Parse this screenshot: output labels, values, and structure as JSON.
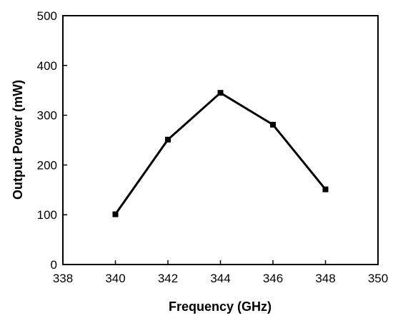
{
  "chart_data": {
    "type": "line",
    "title": "",
    "xlabel": "Frequency (GHz)",
    "ylabel": "Output Power (mW)",
    "xlim": [
      338,
      350
    ],
    "ylim": [
      0,
      500
    ],
    "xticks": [
      "338",
      "340",
      "342",
      "344",
      "346",
      "348",
      "350"
    ],
    "yticks": [
      "0",
      "100",
      "200",
      "300",
      "400",
      "500"
    ],
    "grid": false,
    "legend": "none",
    "marker": "square",
    "line_color": "#000000",
    "series": [
      {
        "x": [
          340,
          342,
          344,
          346,
          348
        ],
        "y": [
          101,
          251,
          345,
          281,
          151
        ]
      }
    ]
  }
}
